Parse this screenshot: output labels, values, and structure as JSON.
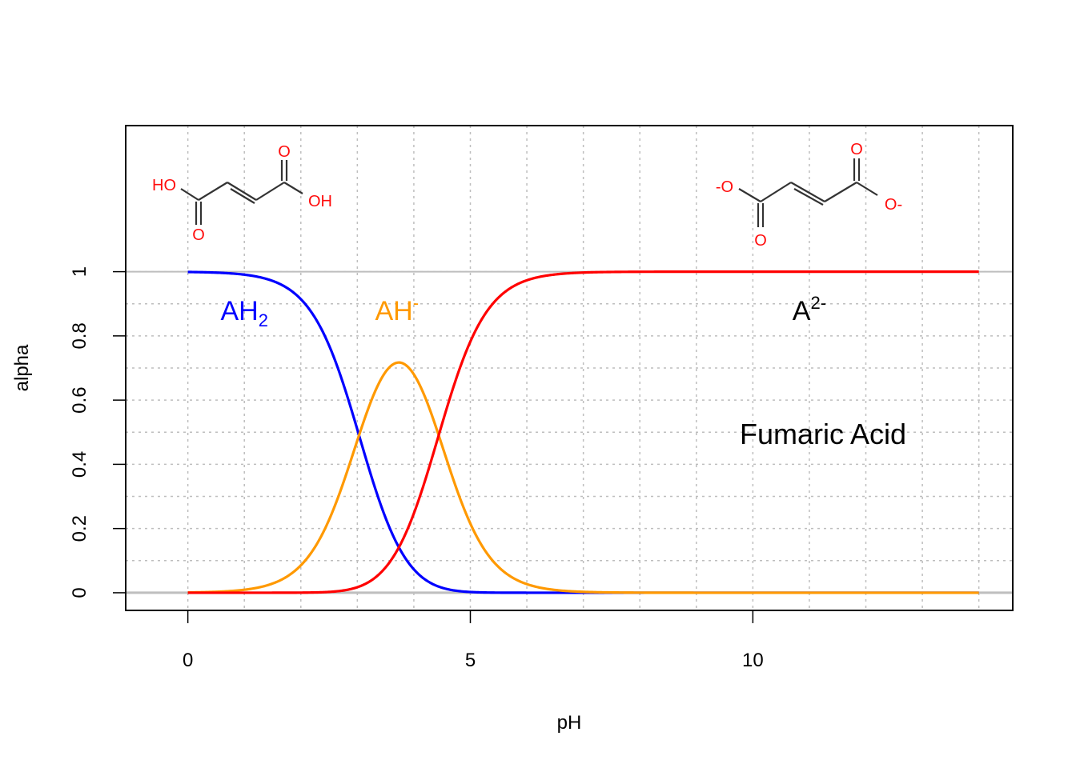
{
  "colors": {
    "ah2": "#0000ff",
    "ah": "#ff9900",
    "a2": "#ff0000",
    "grid": "#bebebe",
    "refline": "#bebebe",
    "structure": "#ff0d0d",
    "bond": "#333333"
  },
  "chart_data": {
    "type": "line",
    "title": "Fumaric Acid",
    "xlabel": "pH",
    "ylabel": "alpha",
    "xlim": [
      -1.1,
      14.6
    ],
    "ylim": [
      -0.055,
      1.455
    ],
    "x_ticks": [
      0,
      5,
      10
    ],
    "y_ticks": [
      0,
      0.2,
      0.4,
      0.6,
      0.8,
      1
    ],
    "x_tick_labels": [
      "0",
      "5",
      "10"
    ],
    "y_tick_labels": [
      "0",
      "0.2",
      "0.4",
      "0.6",
      "0.8",
      "1"
    ],
    "grid": true,
    "x_range": [
      0,
      14
    ],
    "pKa": [
      3.03,
      4.44
    ],
    "series": [
      {
        "key": "ah2",
        "label_main": "AH",
        "label_sub": "2",
        "label_sup": "",
        "label_pos": [
          1.0,
          0.88
        ]
      },
      {
        "key": "ah",
        "label_main": "AH",
        "label_sub": "",
        "label_sup": "-",
        "label_pos": [
          3.7,
          0.88
        ]
      },
      {
        "key": "a2",
        "label_main": "A",
        "label_sub": "",
        "label_sup": "2-",
        "label_pos": [
          11.0,
          0.88
        ]
      }
    ],
    "structures": {
      "acid": {
        "left_oh": "HO",
        "top_o": "O",
        "right_oh": "OH",
        "bottom_o": "O"
      },
      "dianion": {
        "left_o": "-O",
        "top_o": "O",
        "right_o": "O-",
        "bottom_o": "O"
      }
    }
  }
}
